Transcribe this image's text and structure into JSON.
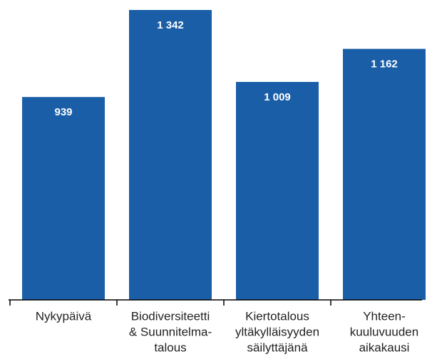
{
  "chart_data": {
    "type": "bar",
    "categories": [
      [
        "Nykypäivä"
      ],
      [
        "Biodiversiteetti",
        "& Suunnitelma-",
        "talous"
      ],
      [
        "Kiertotalous",
        "yltäkylläisyyden",
        "säilyttäjänä"
      ],
      [
        "Yhteen-",
        "kuuluvuuden",
        "aikakausi"
      ]
    ],
    "values": [
      939,
      1342,
      1009,
      1162
    ],
    "value_labels": [
      "939",
      "1 342",
      "1 009",
      "1 162"
    ],
    "color": "#1a5ea8"
  }
}
